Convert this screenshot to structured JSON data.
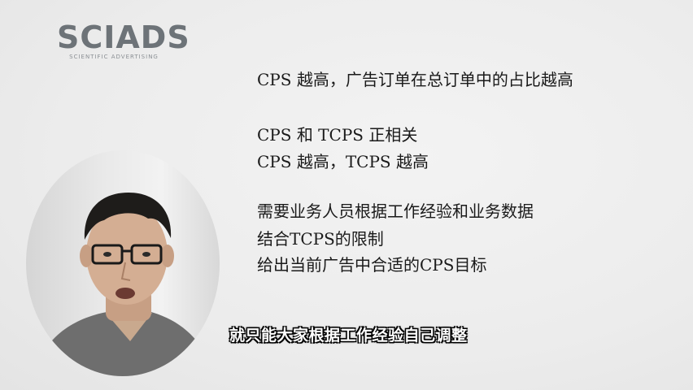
{
  "logo": {
    "main": "SCIADS",
    "sub": "SCIENTIFIC ADVERTISING"
  },
  "content": {
    "line1": "CPS 越高，广告订单在总订单中的占比越高",
    "line2": "CPS 和 TCPS 正相关",
    "line3": "CPS 越高，TCPS 越高",
    "line4": "需要业务人员根据工作经验和业务数据",
    "line5": "结合TCPS的限制",
    "line6": "给出当前广告中合适的CPS目标"
  },
  "subtitle": "就只能大家根据工作经验自己调整",
  "colors": {
    "background": "#ededed",
    "logo": "#6d7378",
    "text": "#1a1a1a",
    "subtitle_fill": "#ffffff",
    "subtitle_outline": "#000000"
  }
}
